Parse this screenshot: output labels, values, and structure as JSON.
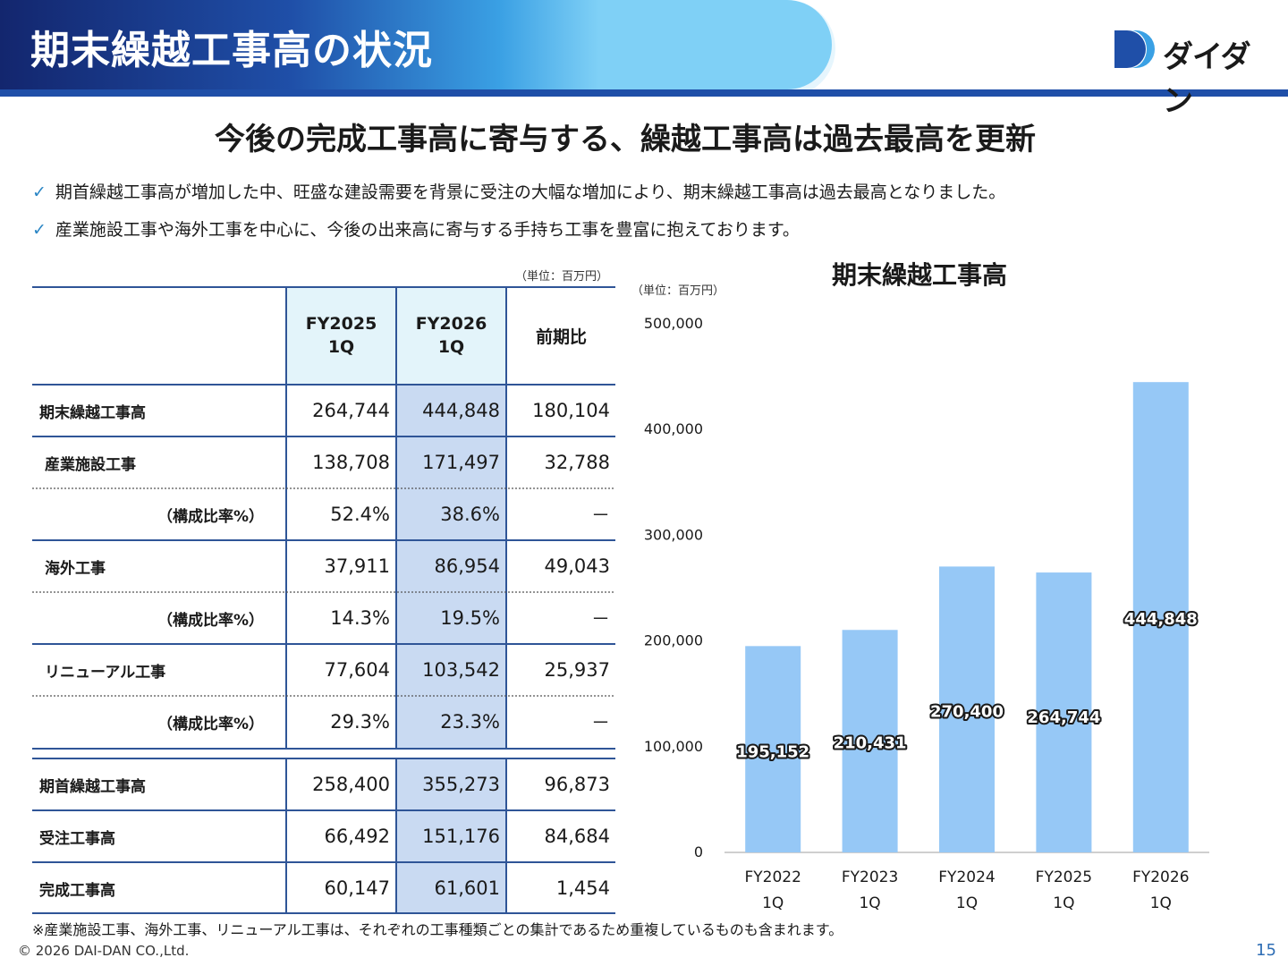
{
  "header": {
    "title": "期末繰越工事高の状況",
    "logo_text": "ダイダン"
  },
  "headline": "今後の完成工事高に寄与する、繰越工事高は過去最高を更新",
  "bullets": [
    "期首繰越工事高が増加した中、旺盛な建設需要を背景に受注の大幅な増加により、期末繰越工事高は過去最高となりました。",
    "産業施設工事や海外工事を中心に、今後の出来高に寄与する手持ち工事を豊富に抱えております。"
  ],
  "table": {
    "unit": "（単位：百万円）",
    "columns": [
      "FY2025\n1Q",
      "FY2026\n1Q",
      "前期比"
    ],
    "rows": [
      {
        "label": "期末繰越工事高",
        "a": "264,744",
        "b": "444,848",
        "c": "180,104"
      },
      {
        "label": "産業施設工事",
        "a": "138,708",
        "b": "171,497",
        "c": "32,788"
      },
      {
        "label": "（構成比率%）",
        "a": "52.4%",
        "b": "38.6%",
        "c": "－"
      },
      {
        "label": "海外工事",
        "a": "37,911",
        "b": "86,954",
        "c": "49,043"
      },
      {
        "label": "（構成比率%）",
        "a": "14.3%",
        "b": "19.5%",
        "c": "－"
      },
      {
        "label": "リニューアル工事",
        "a": "77,604",
        "b": "103,542",
        "c": "25,937"
      },
      {
        "label": "（構成比率%）",
        "a": "29.3%",
        "b": "23.3%",
        "c": "－"
      },
      {
        "label": "期首繰越工事高",
        "a": "258,400",
        "b": "355,273",
        "c": "96,873"
      },
      {
        "label": "受注工事高",
        "a": "66,492",
        "b": "151,176",
        "c": "84,684"
      },
      {
        "label": "完成工事高",
        "a": "60,147",
        "b": "61,601",
        "c": "1,454"
      }
    ]
  },
  "chart_data": {
    "type": "bar",
    "title": "期末繰越工事高",
    "unit": "（単位：百万円）",
    "categories": [
      "FY2022\n1Q",
      "FY2023\n1Q",
      "FY2024\n1Q",
      "FY2025\n1Q",
      "FY2026\n1Q"
    ],
    "values": [
      195152,
      210431,
      270400,
      264744,
      444848
    ],
    "value_labels": [
      "195,152",
      "210,431",
      "270,400",
      "264,744",
      "444,848"
    ],
    "ylim": [
      0,
      500000
    ],
    "yticks": [
      0,
      100000,
      200000,
      300000,
      400000,
      500000
    ],
    "ytick_labels": [
      "0",
      "100,000",
      "200,000",
      "300,000",
      "400,000",
      "500,000"
    ],
    "bar_color": "#96c8f6",
    "grid": false
  },
  "note": "※産業施設工事、海外工事、リニューアル工事は、それぞれの工事種類ごとの集計であるため重複しているものも含まれます。",
  "footer": {
    "copyright": "© 2026 DAI-DAN CO.,Ltd.",
    "page": "15"
  }
}
